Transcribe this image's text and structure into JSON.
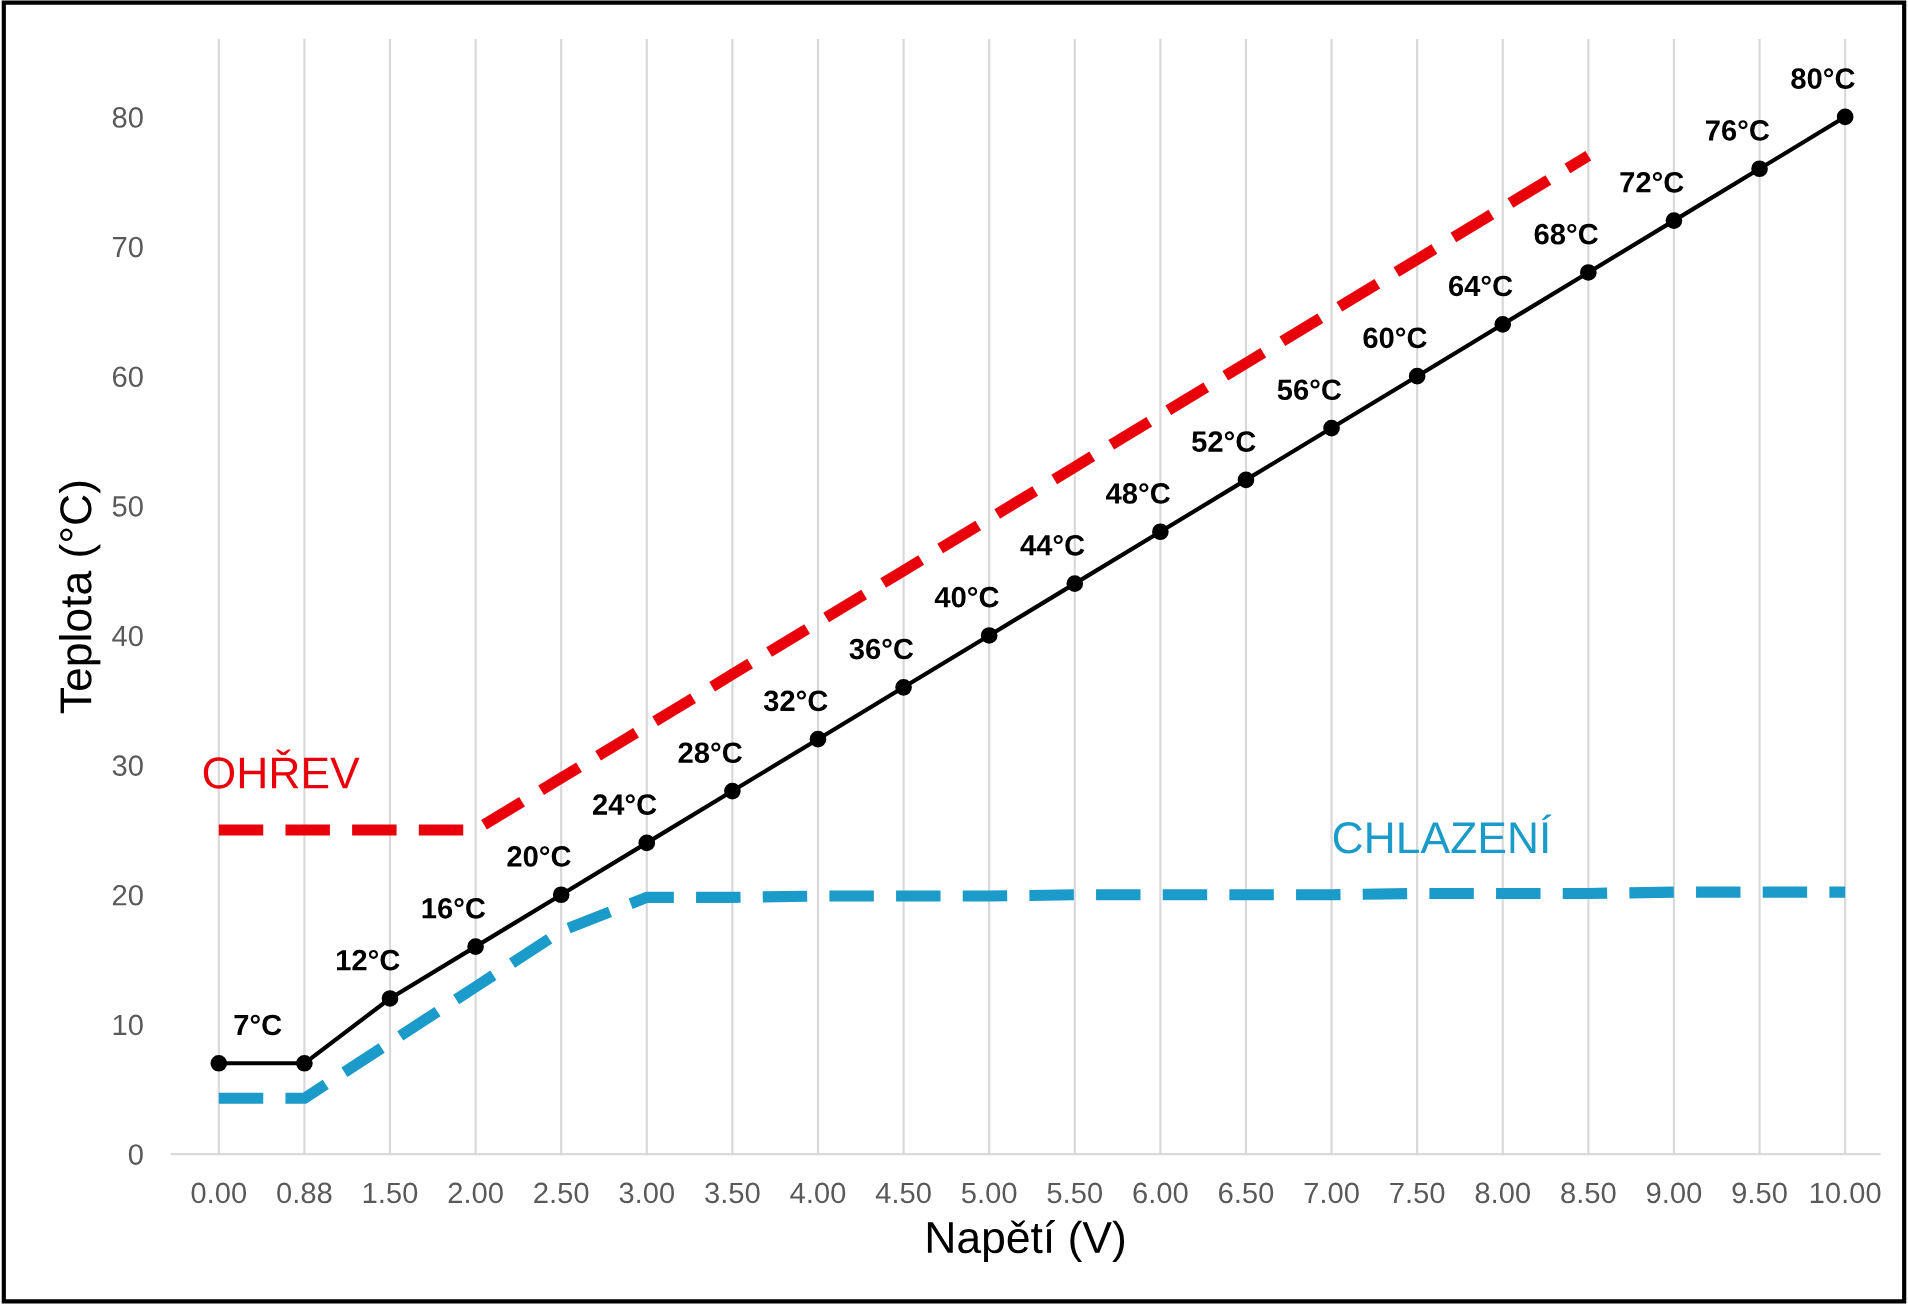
{
  "chart_data": {
    "type": "line",
    "xlabel": "Napětí (V)",
    "ylabel": "Teplota (°C)",
    "categories": [
      "0.00",
      "0.88",
      "1.50",
      "2.00",
      "2.50",
      "3.00",
      "3.50",
      "4.00",
      "4.50",
      "5.00",
      "5.50",
      "6.00",
      "6.50",
      "7.00",
      "7.50",
      "8.00",
      "8.50",
      "9.00",
      "9.50",
      "10.00"
    ],
    "series": [
      {
        "name": "OHŘEV",
        "color": "#e8000b",
        "line_style": "dashed",
        "marker": "none",
        "values": [
          25,
          25,
          25,
          25,
          29,
          33,
          37,
          41,
          45,
          49,
          53,
          57,
          61,
          65,
          69,
          73,
          77,
          null,
          null,
          null
        ]
      },
      {
        "name": "CHLAZENÍ",
        "color": "#1a9bc9",
        "line_style": "dashed",
        "marker": "none",
        "values": [
          4.3,
          4.3,
          8.6,
          12.9,
          17.2,
          19.8,
          19.8,
          19.9,
          19.9,
          19.9,
          20.0,
          20.0,
          20.0,
          20.0,
          20.1,
          20.1,
          20.1,
          20.2,
          20.2,
          20.2
        ]
      },
      {
        "color": "#000000",
        "line_style": "solid",
        "marker": "circle",
        "values": [
          7,
          7,
          12,
          16,
          20,
          24,
          28,
          32,
          36,
          40,
          44,
          48,
          52,
          56,
          60,
          64,
          68,
          72,
          76,
          80
        ],
        "value_labels": [
          null,
          "7°C",
          "12°C",
          "16°C",
          "20°C",
          "24°C",
          "28°C",
          "32°C",
          "36°C",
          "40°C",
          "44°C",
          "48°C",
          "52°C",
          "56°C",
          "60°C",
          "64°C",
          "68°C",
          "72°C",
          "76°C",
          "80°C"
        ]
      }
    ],
    "ylim": [
      0,
      86
    ],
    "yticks": [
      0,
      10,
      20,
      30,
      40,
      50,
      60,
      70,
      80
    ],
    "grid": "x",
    "legend": false
  }
}
